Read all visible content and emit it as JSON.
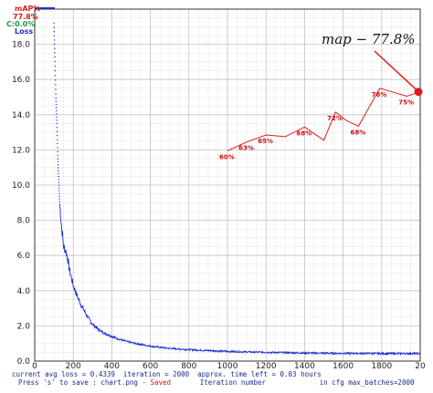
{
  "chart_data": {
    "type": "line",
    "legend": {
      "map_title": "mAP%",
      "map_value": "77.8%",
      "c_label": "C:0.0%",
      "loss_label": "Loss",
      "colors": {
        "map": "#e01b1b",
        "c": "#1e9a3a",
        "loss": "#1f2fd0"
      }
    },
    "xlabel": "Iteration number",
    "xlim": [
      0,
      2000
    ],
    "ylim": [
      0,
      20
    ],
    "x_ticks": [
      "0",
      "200",
      "400",
      "600",
      "800",
      "1000",
      "1200",
      "1400",
      "1600",
      "1800",
      "20"
    ],
    "y_ticks": [
      "0.0",
      "2.0",
      "4.0",
      "6.0",
      "8.0",
      "10.0",
      "12.0",
      "14.0",
      "16.0",
      "18.0"
    ],
    "grid": true,
    "series": [
      {
        "name": "Loss",
        "color": "#1f2fd0",
        "x": [
          100,
          105,
          110,
          115,
          120,
          125,
          130,
          140,
          150,
          160,
          170,
          180,
          200,
          220,
          240,
          260,
          280,
          300,
          330,
          360,
          400,
          450,
          500,
          550,
          600,
          650,
          700,
          800,
          900,
          1000,
          1100,
          1200,
          1300,
          1400,
          1500,
          1600,
          1700,
          1800,
          1900,
          2000
        ],
        "y": [
          19.2,
          17.2,
          15.0,
          13.5,
          11.6,
          10.2,
          8.9,
          7.6,
          6.5,
          6.3,
          5.9,
          5.2,
          4.3,
          3.7,
          3.2,
          2.8,
          2.4,
          2.1,
          1.8,
          1.6,
          1.4,
          1.2,
          1.05,
          0.95,
          0.85,
          0.78,
          0.72,
          0.65,
          0.6,
          0.55,
          0.52,
          0.5,
          0.48,
          0.46,
          0.45,
          0.44,
          0.44,
          0.43,
          0.43,
          0.43
        ]
      },
      {
        "name": "mAP%",
        "color": "#e01b1b",
        "x": [
          1000,
          1100,
          1200,
          1300,
          1400,
          1500,
          1560,
          1620,
          1680,
          1790,
          1930,
          2000
        ],
        "y": [
          11.95,
          12.45,
          12.85,
          12.75,
          13.3,
          12.55,
          14.15,
          13.65,
          13.35,
          15.5,
          15.05,
          15.3
        ],
        "point_labels": [
          "60%",
          "63%",
          "65%",
          "",
          "68%",
          "",
          "72%",
          "",
          "68%",
          "78%",
          "75%",
          ""
        ]
      }
    ],
    "annotation": {
      "text": "map − 77.8%",
      "x": 2000,
      "y": 15.3
    }
  },
  "status": {
    "avg_loss": "current avg loss = 0.4339",
    "iteration": "iteration = 2000",
    "time_left": "approx. time left = 0.03 hours",
    "save_hint": "Press 's' to save : chart.png - ",
    "saved": "Saved",
    "max_batches": "in cfg max_batches=2000"
  }
}
